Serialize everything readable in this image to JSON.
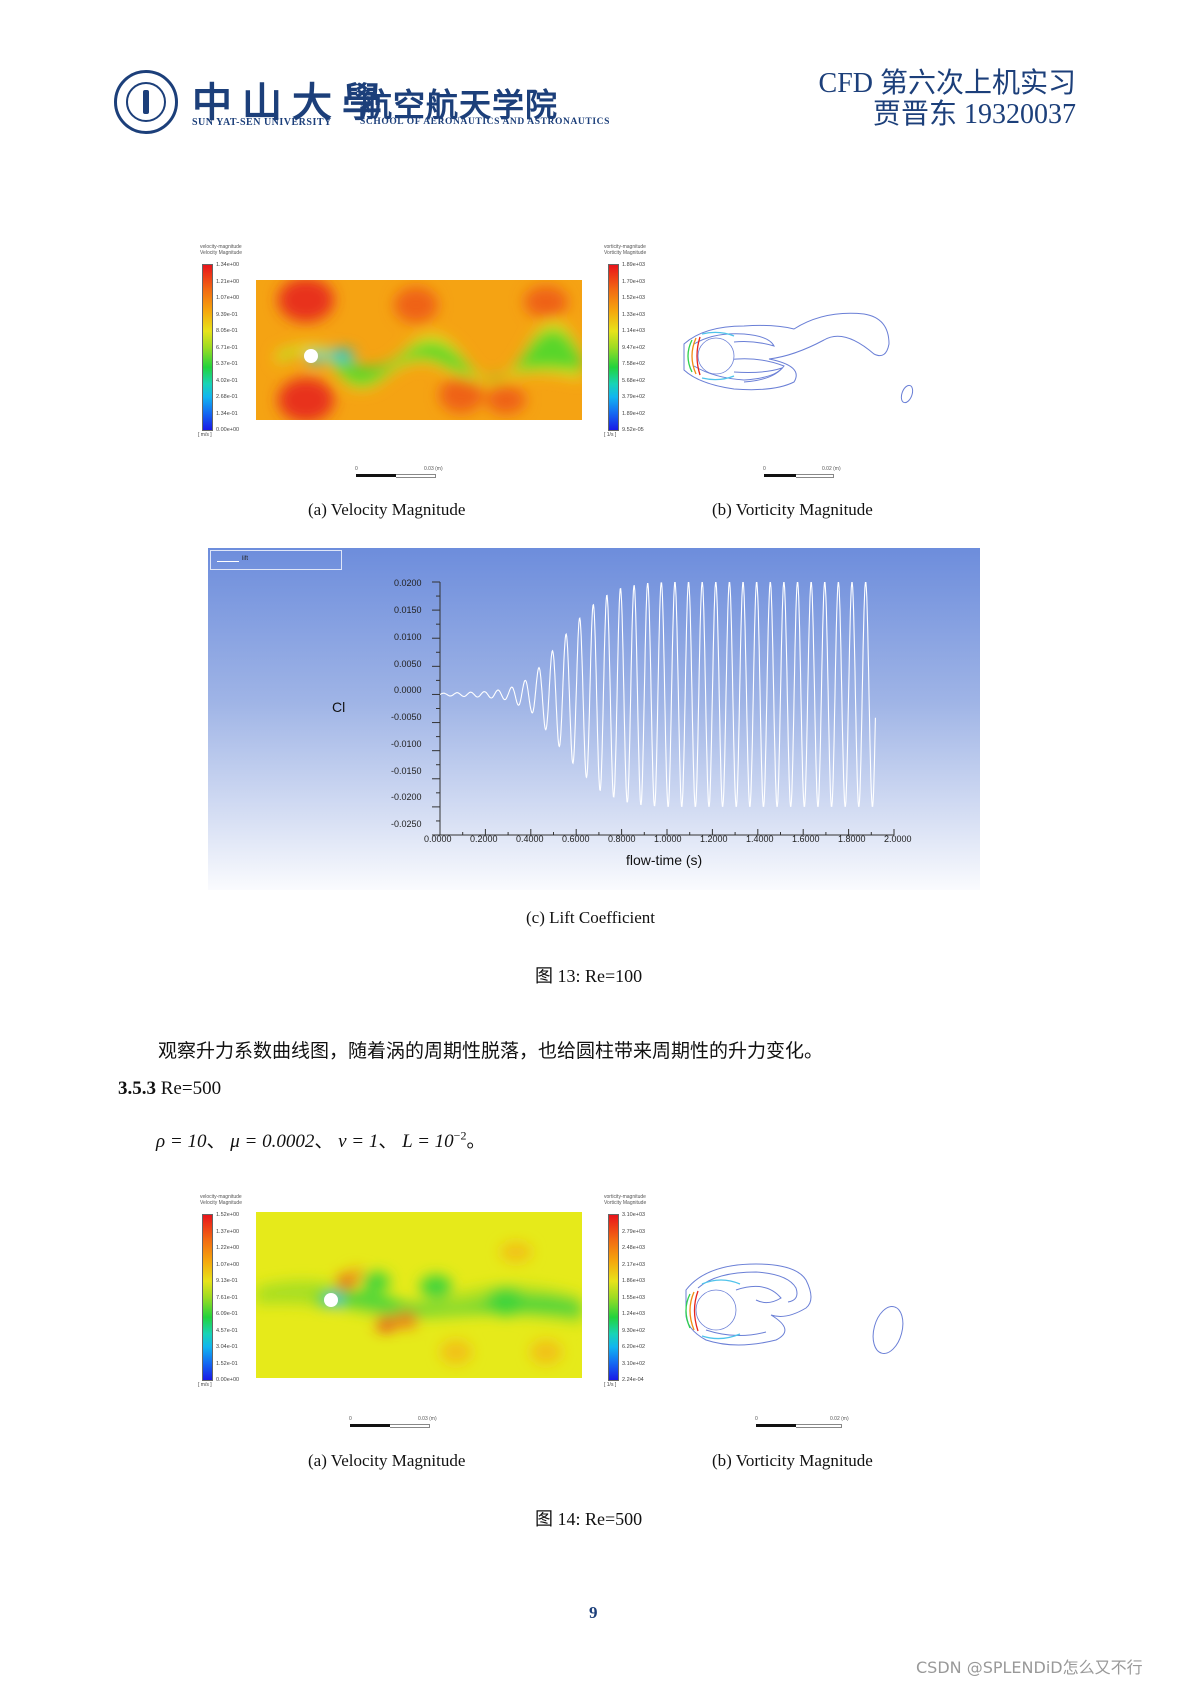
{
  "header": {
    "university_cn": "中山大學",
    "university_en": "SUN YAT-SEN UNIVERSITY",
    "school_cn": "航空航天学院",
    "school_en": "SCHOOL OF AERONAUTICS AND ASTRONAUTICS",
    "course_title": "CFD 第六次上机实习",
    "author_line": "贾晋东 19320037"
  },
  "figure13": {
    "velocity": {
      "legend_title_1": "velocity-magnitude",
      "legend_title_2": "Velocity Magnitude",
      "unit": "[ m/s ]",
      "levels": [
        "1.34e+00",
        "1.21e+00",
        "1.07e+00",
        "9.39e-01",
        "8.05e-01",
        "6.71e-01",
        "5.37e-01",
        "4.02e-01",
        "2.68e-01",
        "1.34e-01",
        "0.00e+00"
      ],
      "scale_label_start": "0",
      "scale_label_end": "0.03 (m)",
      "caption": "(a) Velocity Magnitude"
    },
    "vorticity": {
      "legend_title_1": "vorticity-magnitude",
      "legend_title_2": "Vorticity Magnitude",
      "unit": "[ 1/s ]",
      "levels": [
        "1.89e+03",
        "1.70e+03",
        "1.52e+03",
        "1.33e+03",
        "1.14e+03",
        "9.47e+02",
        "7.58e+02",
        "5.68e+02",
        "3.79e+02",
        "1.89e+02",
        "9.52e-05"
      ],
      "scale_label_start": "0",
      "scale_label_end": "0.02 (m)",
      "caption": "(b) Vorticity Magnitude"
    },
    "lift_caption": "(c) Lift Coefficient",
    "title": "图 13: Re=100"
  },
  "chart_data": {
    "type": "line",
    "title": "",
    "xlabel": "flow-time (s)",
    "ylabel": "Cl",
    "legend": [
      "lift"
    ],
    "xlim": [
      0.0,
      2.0
    ],
    "ylim": [
      -0.025,
      0.02
    ],
    "x_ticks": [
      "0.0000",
      "0.2000",
      "0.4000",
      "0.6000",
      "0.8000",
      "1.0000",
      "1.2000",
      "1.4000",
      "1.6000",
      "1.8000",
      "2.0000"
    ],
    "y_ticks": [
      "0.0200",
      "0.0150",
      "0.0100",
      "0.0050",
      "0.0000",
      "-0.0050",
      "-0.0100",
      "-0.0150",
      "-0.0200",
      "-0.0250"
    ],
    "grid": false,
    "series": [
      {
        "name": "lift",
        "description": "growing oscillation of lift coefficient, saturating at about ±0.020 after ~0.9 s; period ~0.06 s; ends near 1.92 s",
        "envelope_t": [
          0.0,
          0.2,
          0.3,
          0.4,
          0.5,
          0.6,
          0.7,
          0.8,
          0.9,
          1.0,
          1.92
        ],
        "envelope_amp": [
          0.0002,
          0.0005,
          0.001,
          0.003,
          0.008,
          0.013,
          0.017,
          0.019,
          0.0198,
          0.02,
          0.02
        ],
        "period_s": 0.06,
        "t_end": 1.92
      }
    ]
  },
  "body": {
    "paragraph": "观察升力系数曲线图，随着涡的周期性脱落，也给圆柱带来周期性的升力变化。",
    "section_number": "3.5.3",
    "section_title": "Re=500",
    "formula": {
      "rho": "ρ = 10",
      "mu": "μ = 0.0002",
      "v": "v = 1",
      "L": "L = 10",
      "L_exp": "−2",
      "sep": "、",
      "end": "。"
    }
  },
  "figure14": {
    "velocity": {
      "legend_title_1": "velocity-magnitude",
      "legend_title_2": "Velocity Magnitude",
      "unit": "[ m/s ]",
      "levels": [
        "1.52e+00",
        "1.37e+00",
        "1.22e+00",
        "1.07e+00",
        "9.13e-01",
        "7.61e-01",
        "6.09e-01",
        "4.57e-01",
        "3.04e-01",
        "1.52e-01",
        "0.00e+00"
      ],
      "scale_label_start": "0",
      "scale_label_end": "0.03 (m)",
      "caption": "(a) Velocity Magnitude"
    },
    "vorticity": {
      "legend_title_1": "vorticity-magnitude",
      "legend_title_2": "Vorticity Magnitude",
      "unit": "[ 1/s ]",
      "levels": [
        "3.10e+03",
        "2.79e+03",
        "2.48e+03",
        "2.17e+03",
        "1.86e+03",
        "1.55e+03",
        "1.24e+03",
        "9.30e+02",
        "6.20e+02",
        "3.10e+02",
        "2.24e-04"
      ],
      "scale_label_start": "0",
      "scale_label_end": "0.02 (m)",
      "caption": "(b) Vorticity Magnitude"
    },
    "title": "图 14: Re=500"
  },
  "footer": {
    "page_number": "9",
    "watermark": "CSDN @SPLENDiD怎么又不行"
  },
  "colors": {
    "brand_blue": "#1c3f7a",
    "chart_bg_top": "#6d8ddc",
    "chart_bg_bottom": "#fafbfe"
  }
}
